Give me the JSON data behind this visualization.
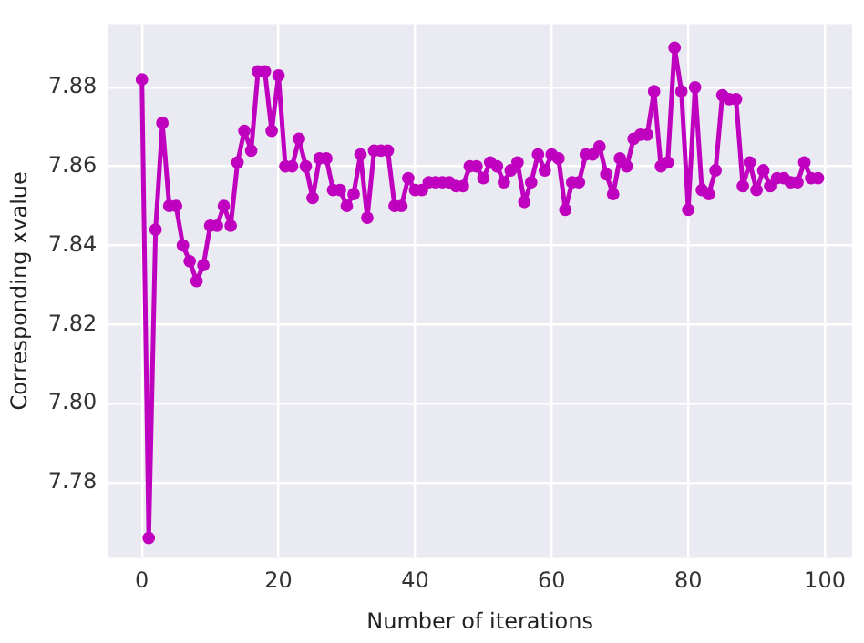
{
  "chart_data": {
    "type": "line",
    "xlabel": "Number of iterations",
    "ylabel": "Corresponding xvalue",
    "x": [
      0,
      1,
      2,
      3,
      4,
      5,
      6,
      7,
      8,
      9,
      10,
      11,
      12,
      13,
      14,
      15,
      16,
      17,
      18,
      19,
      20,
      21,
      22,
      23,
      24,
      25,
      26,
      27,
      28,
      29,
      30,
      31,
      32,
      33,
      34,
      35,
      36,
      37,
      38,
      39,
      40,
      41,
      42,
      43,
      44,
      45,
      46,
      47,
      48,
      49,
      50,
      51,
      52,
      53,
      54,
      55,
      56,
      57,
      58,
      59,
      60,
      61,
      62,
      63,
      64,
      65,
      66,
      67,
      68,
      69,
      70,
      71,
      72,
      73,
      74,
      75,
      76,
      77,
      78,
      79,
      80,
      81,
      82,
      83,
      84,
      85,
      86,
      87,
      88,
      89,
      90,
      91,
      92,
      93,
      94,
      95,
      96,
      97,
      98,
      99
    ],
    "series": [
      {
        "color": "#bf00bf",
        "values": [
          7.882,
          7.766,
          7.844,
          7.871,
          7.85,
          7.85,
          7.84,
          7.836,
          7.831,
          7.835,
          7.845,
          7.845,
          7.85,
          7.845,
          7.861,
          7.869,
          7.864,
          7.884,
          7.884,
          7.869,
          7.883,
          7.86,
          7.86,
          7.867,
          7.86,
          7.852,
          7.862,
          7.862,
          7.854,
          7.854,
          7.85,
          7.853,
          7.863,
          7.847,
          7.864,
          7.864,
          7.864,
          7.85,
          7.85,
          7.857,
          7.854,
          7.854,
          7.856,
          7.856,
          7.856,
          7.856,
          7.855,
          7.855,
          7.86,
          7.86,
          7.857,
          7.861,
          7.86,
          7.856,
          7.859,
          7.861,
          7.851,
          7.856,
          7.863,
          7.859,
          7.863,
          7.862,
          7.849,
          7.856,
          7.856,
          7.863,
          7.863,
          7.865,
          7.858,
          7.853,
          7.862,
          7.86,
          7.867,
          7.868,
          7.868,
          7.879,
          7.86,
          7.861,
          7.89,
          7.879,
          7.849,
          7.88,
          7.854,
          7.853,
          7.859,
          7.878,
          7.877,
          7.877,
          7.855,
          7.861,
          7.854,
          7.859,
          7.855,
          7.857,
          7.857,
          7.856,
          7.856,
          7.861,
          7.857,
          7.857
        ]
      }
    ],
    "xlim": [
      -5,
      104
    ],
    "ylim": [
      7.761,
      7.896
    ],
    "xticks": [
      0,
      20,
      40,
      60,
      80,
      100
    ],
    "yticks": [
      7.78,
      {
        "value": 7.8,
        "label": "7.80"
      },
      7.82,
      7.84,
      7.86,
      7.88
    ],
    "grid": true,
    "marker": "circle",
    "line_style": "solid"
  }
}
